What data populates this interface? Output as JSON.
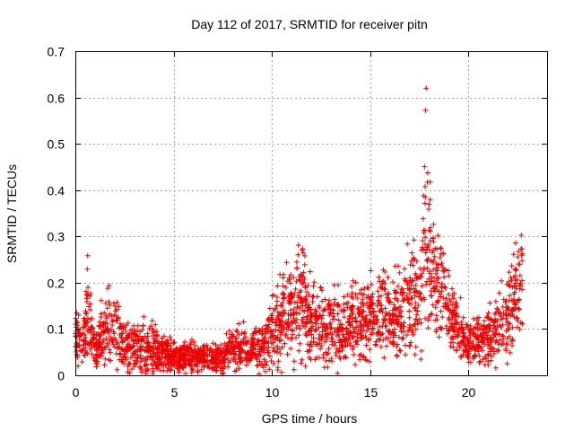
{
  "chart_data": {
    "type": "scatter",
    "title": "Day 112 of 2017, SRMTID for receiver pitn",
    "xlabel": "GPS time / hours",
    "ylabel": "SRMTID / TECUs",
    "xlim": [
      0,
      24
    ],
    "ylim": [
      0,
      0.7
    ],
    "xticks": [
      0,
      5,
      10,
      15,
      20
    ],
    "xtick_labels": [
      "0",
      "5",
      "10",
      "15",
      "20"
    ],
    "yticks": [
      0,
      0.1,
      0.2,
      0.3,
      0.4,
      0.5,
      0.6,
      0.7
    ],
    "ytick_labels": [
      "0",
      "0.1",
      "0.2",
      "0.3",
      "0.4",
      "0.5",
      "0.6",
      "0.7"
    ],
    "grid": true,
    "marker": "+",
    "marker_color": "#ee0000",
    "series": [
      {
        "name": "SRMTID",
        "x_range": [
          0,
          22.75
        ],
        "envelope_hours": [
          0,
          0.5,
          0.6,
          1.0,
          1.8,
          2.5,
          3.5,
          5,
          7,
          8.5,
          9.5,
          10.5,
          11.5,
          12.5,
          13.5,
          14.5,
          15.5,
          16.5,
          17.5,
          17.8,
          18.2,
          19,
          20,
          20.8,
          22,
          22.75
        ],
        "envelope_median": [
          0.07,
          0.08,
          0.15,
          0.05,
          0.12,
          0.06,
          0.06,
          0.04,
          0.035,
          0.065,
          0.06,
          0.12,
          0.15,
          0.1,
          0.1,
          0.12,
          0.14,
          0.12,
          0.18,
          0.35,
          0.22,
          0.14,
          0.07,
          0.08,
          0.12,
          0.22
        ],
        "envelope_spread": [
          0.05,
          0.05,
          0.09,
          0.04,
          0.08,
          0.05,
          0.05,
          0.03,
          0.025,
          0.04,
          0.04,
          0.08,
          0.1,
          0.07,
          0.07,
          0.07,
          0.08,
          0.08,
          0.12,
          0.22,
          0.12,
          0.07,
          0.04,
          0.05,
          0.08,
          0.09
        ],
        "peak": {
          "x": 17.85,
          "y": 0.62
        }
      }
    ]
  }
}
